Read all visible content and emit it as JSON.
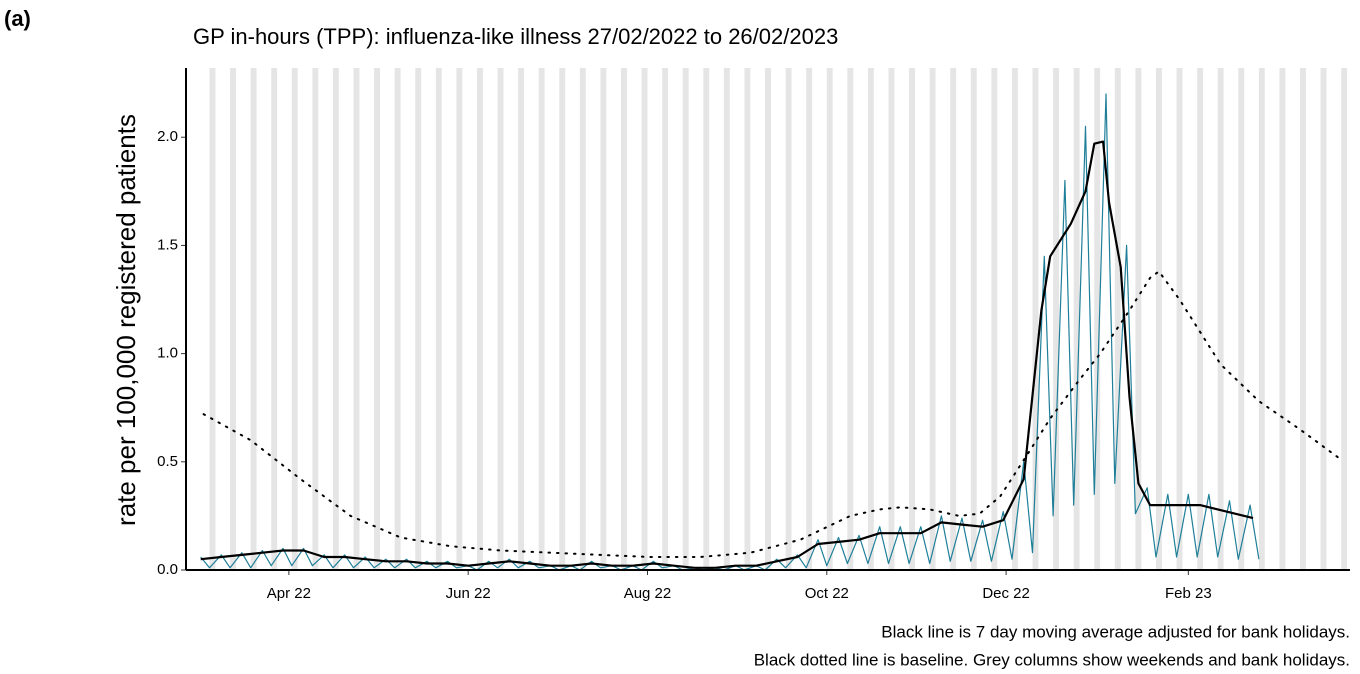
{
  "panel_label": "(a)",
  "chart_data": {
    "type": "line",
    "title": "GP in-hours (TPP): influenza-like illness 27/02/2022 to 26/02/2023",
    "y_label": "rate per 100,000 registered patients",
    "notes": [
      "Black line is 7 day moving average adjusted for bank holidays.",
      "Black dotted line is baseline. Grey columns show weekends and bank holidays."
    ],
    "xlim": [
      -2,
      394
    ],
    "xticks": [
      {
        "value": 33,
        "label": "Apr 22"
      },
      {
        "value": 94,
        "label": "Jun 22"
      },
      {
        "value": 155,
        "label": "Aug 22"
      },
      {
        "value": 216,
        "label": "Oct 22"
      },
      {
        "value": 277,
        "label": "Dec 22"
      },
      {
        "value": 339,
        "label": "Feb 23"
      }
    ],
    "ylim": [
      0,
      2.32
    ],
    "yticks": [
      {
        "value": 0,
        "label": "0.0"
      },
      {
        "value": 0.5,
        "label": "0.5"
      },
      {
        "value": 1,
        "label": "1.0"
      },
      {
        "value": 1.5,
        "label": "1.5"
      },
      {
        "value": 2,
        "label": "2.0"
      }
    ],
    "grey_columns": [
      [
        6,
        8
      ],
      [
        13,
        15
      ],
      [
        20,
        22
      ],
      [
        27,
        29
      ],
      [
        34,
        36
      ],
      [
        41,
        43
      ],
      [
        48,
        50
      ],
      [
        55,
        57
      ],
      [
        62,
        64
      ],
      [
        69,
        71
      ],
      [
        76,
        78
      ],
      [
        83,
        85
      ],
      [
        90,
        92
      ],
      [
        97,
        99
      ],
      [
        104,
        106
      ],
      [
        111,
        113
      ],
      [
        118,
        120
      ],
      [
        125,
        127
      ],
      [
        132,
        134
      ],
      [
        139,
        141
      ],
      [
        146,
        148
      ],
      [
        153,
        155
      ],
      [
        160,
        162
      ],
      [
        167,
        169
      ],
      [
        174,
        176
      ],
      [
        181,
        183
      ],
      [
        188,
        190
      ],
      [
        195,
        197
      ],
      [
        202,
        204
      ],
      [
        209,
        211
      ],
      [
        216,
        218
      ],
      [
        223,
        225
      ],
      [
        230,
        232
      ],
      [
        237,
        239
      ],
      [
        244,
        246
      ],
      [
        251,
        253
      ],
      [
        258,
        260
      ],
      [
        265,
        267
      ],
      [
        272,
        274
      ],
      [
        279,
        281
      ],
      [
        286,
        288
      ],
      [
        293,
        295
      ],
      [
        300,
        302
      ],
      [
        307,
        309
      ],
      [
        314,
        316
      ],
      [
        321,
        323
      ],
      [
        328,
        330
      ],
      [
        335,
        337
      ],
      [
        342,
        344
      ],
      [
        349,
        351
      ],
      [
        356,
        358
      ],
      [
        363,
        365
      ],
      [
        370,
        372
      ],
      [
        377,
        379
      ],
      [
        384,
        386
      ],
      [
        391,
        393
      ]
    ],
    "grey_color": "#e5e5e5",
    "series": [
      {
        "color": "#1f7f99",
        "width": 1.2,
        "style": "solid",
        "x": [
          3,
          6,
          10,
          13,
          17,
          20,
          24,
          27,
          31,
          34,
          38,
          41,
          45,
          48,
          52,
          55,
          59,
          62,
          66,
          69,
          73,
          76,
          80,
          83,
          87,
          90,
          94,
          97,
          101,
          104,
          108,
          111,
          115,
          118,
          122,
          125,
          129,
          132,
          136,
          139,
          143,
          146,
          150,
          153,
          157,
          160,
          164,
          167,
          171,
          174,
          178,
          181,
          185,
          188,
          192,
          195,
          199,
          202,
          206,
          209,
          213,
          216,
          220,
          223,
          227,
          230,
          234,
          237,
          241,
          244,
          248,
          251,
          255,
          258,
          262,
          265,
          269,
          272,
          276,
          279,
          283,
          286,
          290,
          293,
          297,
          300,
          304,
          307,
          311,
          314,
          318,
          321,
          325,
          328,
          332,
          335,
          339,
          342,
          346,
          349,
          353,
          356,
          360,
          363
        ],
        "values": [
          0.06,
          0.01,
          0.07,
          0.01,
          0.08,
          0.01,
          0.09,
          0.02,
          0.1,
          0.02,
          0.1,
          0.02,
          0.07,
          0.01,
          0.07,
          0.01,
          0.06,
          0.01,
          0.05,
          0.01,
          0.05,
          0.01,
          0.04,
          0.01,
          0.04,
          0.01,
          0.02,
          0,
          0.04,
          0.01,
          0.05,
          0.01,
          0.04,
          0.01,
          0.02,
          0,
          0.02,
          0,
          0.04,
          0.01,
          0.02,
          0,
          0.02,
          0,
          0.04,
          0.01,
          0.02,
          0,
          0.01,
          0,
          0.01,
          0,
          0.02,
          0,
          0.02,
          0,
          0.05,
          0.01,
          0.07,
          0.01,
          0.14,
          0.02,
          0.15,
          0.03,
          0.16,
          0.03,
          0.2,
          0.03,
          0.2,
          0.03,
          0.2,
          0.03,
          0.25,
          0.04,
          0.24,
          0.04,
          0.23,
          0.04,
          0.27,
          0.05,
          0.5,
          0.08,
          1.45,
          0.25,
          1.8,
          0.3,
          2.05,
          0.35,
          2.2,
          0.4,
          1.5,
          0.26,
          0.38,
          0.06,
          0.35,
          0.06,
          0.35,
          0.06,
          0.35,
          0.06,
          0.32,
          0.05,
          0.3,
          0.05
        ]
      },
      {
        "color": "#000000",
        "width": 2.2,
        "style": "solid",
        "x": [
          3,
          10,
          17,
          24,
          31,
          38,
          45,
          52,
          59,
          66,
          73,
          80,
          87,
          94,
          101,
          108,
          115,
          122,
          129,
          136,
          143,
          150,
          157,
          164,
          171,
          178,
          185,
          192,
          199,
          206,
          213,
          220,
          227,
          234,
          241,
          248,
          255,
          262,
          269,
          276,
          283,
          289,
          292,
          299,
          304,
          307,
          310,
          312,
          316,
          319,
          322,
          326,
          335,
          343,
          352,
          361
        ],
        "values": [
          0.05,
          0.06,
          0.07,
          0.08,
          0.09,
          0.09,
          0.06,
          0.06,
          0.05,
          0.04,
          0.04,
          0.03,
          0.03,
          0.02,
          0.03,
          0.04,
          0.03,
          0.02,
          0.02,
          0.03,
          0.02,
          0.02,
          0.03,
          0.02,
          0.01,
          0.01,
          0.02,
          0.02,
          0.04,
          0.06,
          0.12,
          0.13,
          0.14,
          0.17,
          0.17,
          0.17,
          0.22,
          0.21,
          0.2,
          0.23,
          0.42,
          1.2,
          1.45,
          1.6,
          1.75,
          1.97,
          1.98,
          1.7,
          1.4,
          0.8,
          0.4,
          0.3,
          0.3,
          0.3,
          0.27,
          0.24
        ]
      },
      {
        "color": "#000000",
        "width": 2,
        "style": "dotted",
        "x": [
          4,
          20,
          37,
          54,
          71,
          88,
          105,
          122,
          139,
          156,
          173,
          190,
          207,
          224,
          234,
          241,
          251,
          261,
          268,
          275,
          285,
          292,
          302,
          309,
          319,
          326,
          329,
          336,
          350,
          363,
          377,
          390
        ],
        "values": [
          0.72,
          0.6,
          0.42,
          0.25,
          0.15,
          0.11,
          0.09,
          0.08,
          0.07,
          0.06,
          0.06,
          0.08,
          0.14,
          0.25,
          0.28,
          0.29,
          0.28,
          0.25,
          0.26,
          0.34,
          0.55,
          0.7,
          0.88,
          1.0,
          1.2,
          1.35,
          1.38,
          1.25,
          0.95,
          0.78,
          0.65,
          0.52
        ]
      }
    ]
  }
}
